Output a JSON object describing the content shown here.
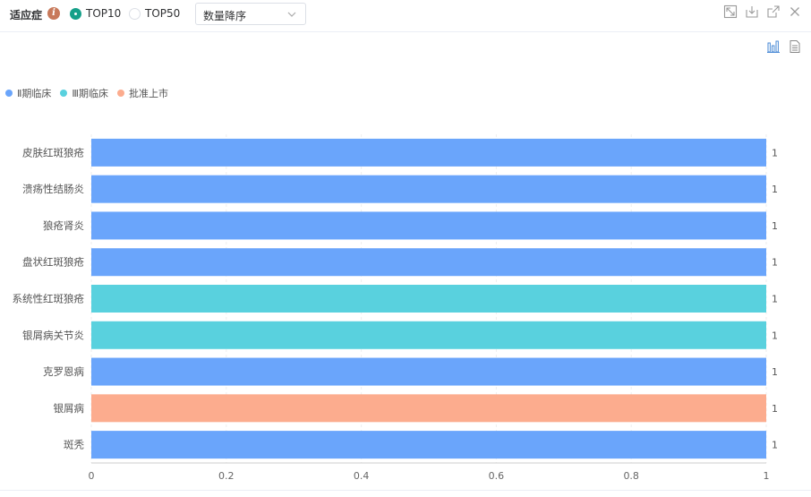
{
  "toolbar": {
    "title": "适应症",
    "info_icon_glyph": "i",
    "radio_top10": "TOP10",
    "radio_top50": "TOP50",
    "selected_radio": "TOP10",
    "sort_select": "数量降序",
    "accent_color": "#16a089"
  },
  "icons": {
    "window": [
      "expand-icon",
      "download-icon",
      "open-external-icon",
      "close-icon"
    ],
    "view": [
      "bar-chart-icon",
      "document-icon"
    ]
  },
  "chart_data": {
    "type": "bar",
    "orientation": "horizontal",
    "categories": [
      "皮肤红斑狼疮",
      "溃疡性结肠炎",
      "狼疮肾炎",
      "盘状红斑狼疮",
      "系统性红斑狼疮",
      "银屑病关节炎",
      "克罗恩病",
      "银屑病",
      "斑秃"
    ],
    "values": [
      1,
      1,
      1,
      1,
      1,
      1,
      1,
      1,
      1
    ],
    "value_labels": [
      "1",
      "1",
      "1",
      "1",
      "1",
      "1",
      "1",
      "1",
      "1"
    ],
    "bar_series": [
      "Ⅱ期临床",
      "Ⅱ期临床",
      "Ⅱ期临床",
      "Ⅱ期临床",
      "Ⅲ期临床",
      "Ⅲ期临床",
      "Ⅱ期临床",
      "批准上市",
      "Ⅱ期临床"
    ],
    "legend": [
      {
        "name": "Ⅱ期临床",
        "color": "#6aa5fb"
      },
      {
        "name": "Ⅲ期临床",
        "color": "#59d1de"
      },
      {
        "name": "批准上市",
        "color": "#fcac8e"
      }
    ],
    "xlim": [
      0,
      1
    ],
    "xticks": [
      "0",
      "0.2",
      "0.4",
      "0.6",
      "0.8",
      "1"
    ],
    "grid": true,
    "legend_position": "top-left"
  }
}
